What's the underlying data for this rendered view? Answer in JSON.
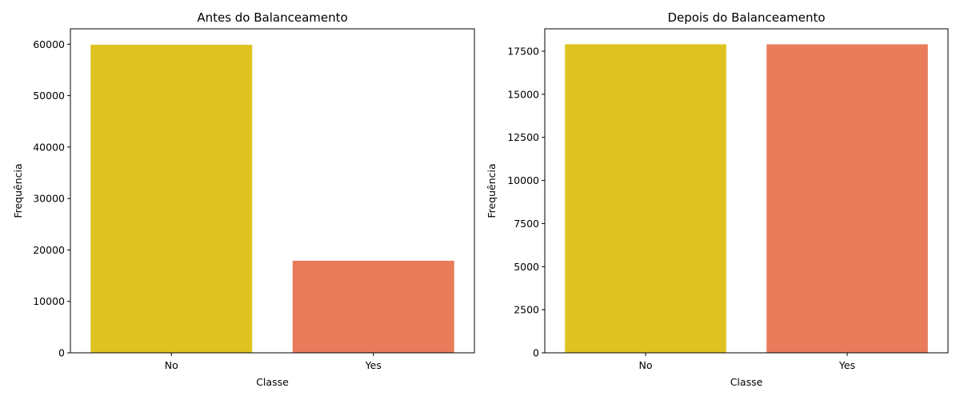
{
  "colors": {
    "no": "#dfc320",
    "yes": "#e87c5b",
    "axis": "#000000",
    "background": "#ffffff"
  },
  "chart_data": [
    {
      "type": "bar",
      "title": "Antes do Balanceamento",
      "xlabel": "Classe",
      "ylabel": "Frequência",
      "categories": [
        "No",
        "Yes"
      ],
      "values": [
        59900,
        17900
      ],
      "ylim": [
        0,
        63000
      ],
      "yticks": [
        0,
        10000,
        20000,
        30000,
        40000,
        50000,
        60000
      ],
      "bar_colors": [
        "#dfc320",
        "#e87c5b"
      ],
      "grid": false,
      "legend": "none"
    },
    {
      "type": "bar",
      "title": "Depois do Balanceamento",
      "xlabel": "Classe",
      "ylabel": "Frequência",
      "categories": [
        "No",
        "Yes"
      ],
      "values": [
        17900,
        17900
      ],
      "ylim": [
        0,
        18800
      ],
      "yticks": [
        0,
        2500,
        5000,
        7500,
        10000,
        12500,
        15000,
        17500
      ],
      "bar_colors": [
        "#dfc320",
        "#e87c5b"
      ],
      "grid": false,
      "legend": "none"
    }
  ]
}
